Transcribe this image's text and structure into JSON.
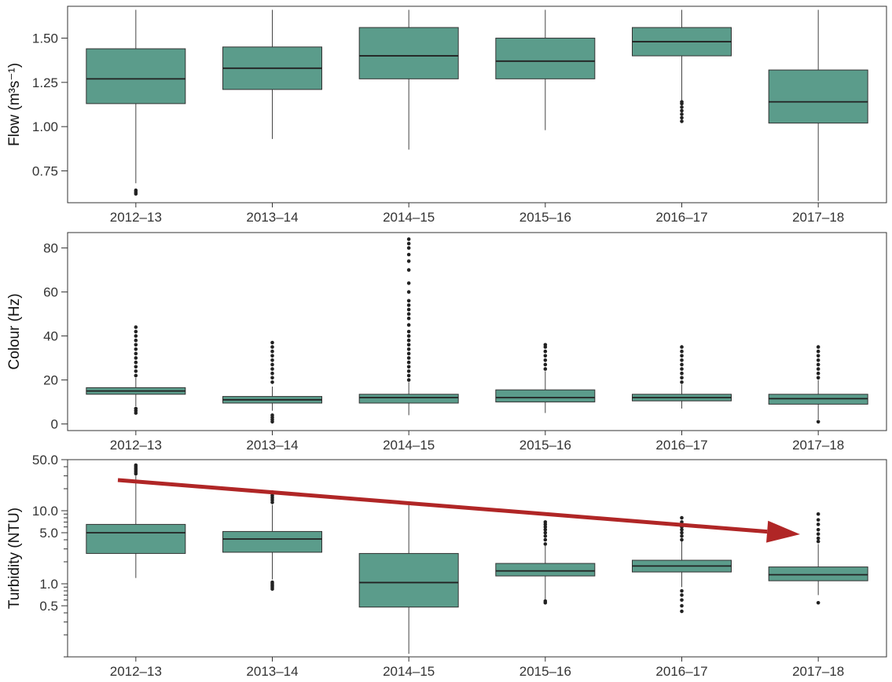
{
  "chart_data": [
    {
      "type": "boxplot",
      "ylabel": "Flow (m³s⁻¹)",
      "ylim": [
        0.57,
        1.68
      ],
      "yscale": "linear",
      "yticks": [
        0.75,
        1.0,
        1.25,
        1.5
      ],
      "ytick_labels": [
        "0.75",
        "1.00",
        "1.25",
        "1.50"
      ],
      "categories": [
        "2012–13",
        "2013–14",
        "2014–15",
        "2015–16",
        "2016–17",
        "2017–18"
      ],
      "box_color": "#5b9c8b",
      "boxes": [
        {
          "category": "2012–13",
          "whisker_low": 0.68,
          "q1": 1.13,
          "median": 1.27,
          "q3": 1.44,
          "whisker_high": 1.66,
          "outliers": [
            0.62,
            0.63,
            0.64
          ]
        },
        {
          "category": "2013–14",
          "whisker_low": 0.93,
          "q1": 1.21,
          "median": 1.33,
          "q3": 1.45,
          "whisker_high": 1.66,
          "outliers": []
        },
        {
          "category": "2014–15",
          "whisker_low": 0.87,
          "q1": 1.27,
          "median": 1.4,
          "q3": 1.56,
          "whisker_high": 1.66,
          "outliers": []
        },
        {
          "category": "2015–16",
          "whisker_low": 0.98,
          "q1": 1.27,
          "median": 1.37,
          "q3": 1.5,
          "whisker_high": 1.66,
          "outliers": []
        },
        {
          "category": "2016–17",
          "whisker_low": 1.15,
          "q1": 1.4,
          "median": 1.48,
          "q3": 1.56,
          "whisker_high": 1.66,
          "outliers": [
            1.03,
            1.05,
            1.07,
            1.09,
            1.11,
            1.13,
            1.14
          ]
        },
        {
          "category": "2017–18",
          "whisker_low": 0.58,
          "q1": 1.02,
          "median": 1.14,
          "q3": 1.32,
          "whisker_high": 1.66,
          "outliers": []
        }
      ]
    },
    {
      "type": "boxplot",
      "ylabel": "Colour (Hz)",
      "ylim": [
        -3,
        87
      ],
      "yscale": "linear",
      "yticks": [
        0,
        20,
        40,
        60,
        80
      ],
      "ytick_labels": [
        "0",
        "20",
        "40",
        "60",
        "80"
      ],
      "categories": [
        "2012–13",
        "2013–14",
        "2014–15",
        "2015–16",
        "2016–17",
        "2017–18"
      ],
      "box_color": "#5b9c8b",
      "boxes": [
        {
          "category": "2012–13",
          "whisker_low": 8,
          "q1": 13.5,
          "median": 15,
          "q3": 16.5,
          "whisker_high": 21,
          "outliers": [
            5,
            6,
            7,
            22,
            24,
            26,
            28,
            30,
            32,
            34,
            36,
            38,
            40,
            42,
            44
          ]
        },
        {
          "category": "2013–14",
          "whisker_low": 6,
          "q1": 9.5,
          "median": 11,
          "q3": 12.5,
          "whisker_high": 17,
          "outliers": [
            1,
            2,
            3,
            4,
            19,
            21,
            23,
            25,
            27,
            29,
            31,
            33,
            35,
            37
          ]
        },
        {
          "category": "2014–15",
          "whisker_low": 4,
          "q1": 9.5,
          "median": 12,
          "q3": 13.5,
          "whisker_high": 19,
          "outliers": [
            20,
            22,
            24,
            26,
            28,
            30,
            32,
            34,
            36,
            38,
            40,
            42,
            45,
            48,
            50,
            52,
            54,
            56,
            60,
            64,
            70,
            74,
            77,
            80,
            82,
            84
          ]
        },
        {
          "category": "2015–16",
          "whisker_low": 5,
          "q1": 10,
          "median": 12,
          "q3": 15.5,
          "whisker_high": 24,
          "outliers": [
            25,
            27,
            29,
            31,
            33,
            35,
            36
          ]
        },
        {
          "category": "2016–17",
          "whisker_low": 7,
          "q1": 10.5,
          "median": 12,
          "q3": 13.5,
          "whisker_high": 18,
          "outliers": [
            19,
            21,
            23,
            25,
            27,
            29,
            31,
            33,
            35
          ]
        },
        {
          "category": "2017–18",
          "whisker_low": 2,
          "q1": 9,
          "median": 11.5,
          "q3": 13.5,
          "whisker_high": 20,
          "outliers": [
            1,
            21,
            23,
            25,
            27,
            29,
            31,
            33,
            35
          ]
        }
      ]
    },
    {
      "type": "boxplot",
      "ylabel": "Turbidity (NTU)",
      "ylim": [
        0.1,
        50
      ],
      "yscale": "log",
      "yticks": [
        0.5,
        1.0,
        5.0,
        10.0,
        50.0
      ],
      "ytick_labels": [
        "0.5",
        "1.0",
        "5.0",
        "10.0",
        "50.0"
      ],
      "categories": [
        "2012–13",
        "2013–14",
        "2014–15",
        "2015–16",
        "2016–17",
        "2017–18"
      ],
      "box_color": "#5b9c8b",
      "trend_arrow_color": "#b02626",
      "boxes": [
        {
          "category": "2012–13",
          "whisker_low": 1.2,
          "q1": 2.6,
          "median": 5.0,
          "q3": 6.5,
          "whisker_high": 30,
          "outliers": [
            32,
            34,
            36,
            38,
            40,
            42
          ]
        },
        {
          "category": "2013–14",
          "whisker_low": 1.15,
          "q1": 2.7,
          "median": 4.1,
          "q3": 5.2,
          "whisker_high": 12,
          "outliers": [
            0.85,
            0.9,
            0.95,
            1.0,
            1.05,
            13,
            14,
            15,
            16,
            17,
            18
          ]
        },
        {
          "category": "2014–15",
          "whisker_low": 0.11,
          "q1": 0.48,
          "median": 1.04,
          "q3": 2.6,
          "whisker_high": 13,
          "outliers": []
        },
        {
          "category": "2015–16",
          "whisker_low": 0.6,
          "q1": 1.28,
          "median": 1.5,
          "q3": 1.9,
          "whisker_high": 3.3,
          "outliers": [
            0.55,
            0.58,
            3.5,
            4.0,
            4.5,
            5.0,
            5.5,
            6.0,
            6.5,
            7.0
          ]
        },
        {
          "category": "2016–17",
          "whisker_low": 0.9,
          "q1": 1.45,
          "median": 1.75,
          "q3": 2.1,
          "whisker_high": 3.8,
          "outliers": [
            0.42,
            0.5,
            0.6,
            0.7,
            0.8,
            4.0,
            4.5,
            5.0,
            5.5,
            6.0,
            7.0,
            8.0
          ]
        },
        {
          "category": "2017–18",
          "whisker_low": 0.7,
          "q1": 1.1,
          "median": 1.33,
          "q3": 1.7,
          "whisker_high": 3.5,
          "outliers": [
            0.55,
            3.8,
            4.2,
            4.8,
            5.5,
            6.5,
            7.5,
            9.0
          ]
        }
      ]
    }
  ]
}
